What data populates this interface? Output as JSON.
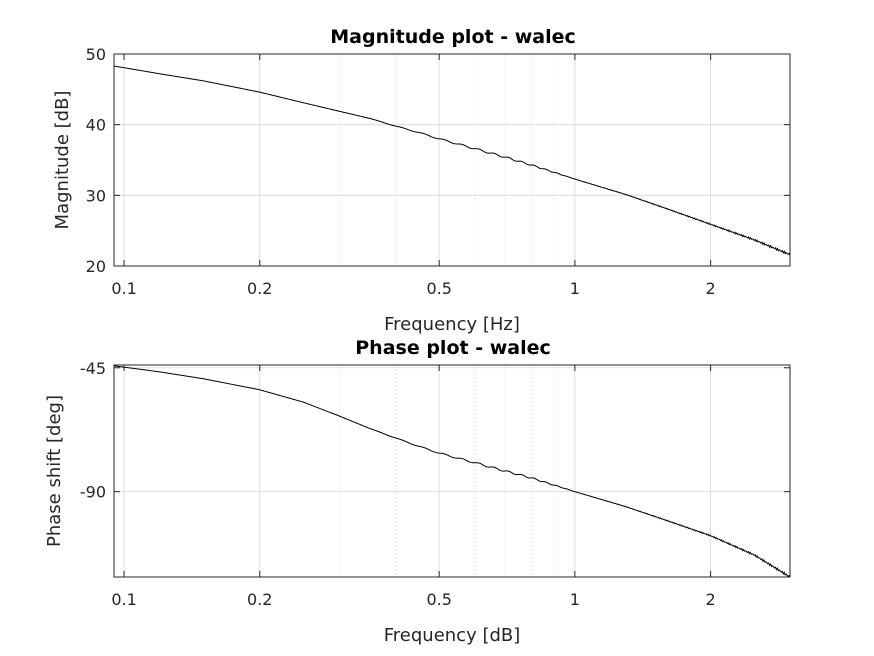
{
  "chart_data": [
    {
      "type": "line",
      "title": "Magnitude plot - walec",
      "xlabel": "Frequency [Hz]",
      "ylabel": "Magnitude [dB]",
      "xscale": "log",
      "xlim": [
        0.095,
        3.0
      ],
      "ylim": [
        20,
        50
      ],
      "xticks": [
        0.1,
        0.2,
        0.5,
        1,
        2
      ],
      "xticklabels": [
        "0.1",
        "0.2",
        "0.5",
        "1",
        "2"
      ],
      "yticks": [
        20,
        30,
        40,
        50
      ],
      "yticklabels": [
        "20",
        "30",
        "40",
        "50"
      ],
      "grid": true,
      "series": [
        {
          "color": "#000000",
          "x": [
            0.095,
            0.12,
            0.15,
            0.2,
            0.25,
            0.3,
            0.35,
            0.4,
            0.45,
            0.5,
            0.6,
            0.7,
            0.8,
            1.0,
            1.3,
            1.6,
            2.0,
            2.5,
            3.0
          ],
          "y": [
            48.3,
            47.2,
            46.2,
            44.6,
            43.1,
            41.9,
            40.9,
            39.8,
            38.9,
            38.0,
            36.6,
            35.4,
            34.3,
            32.3,
            30.1,
            28.1,
            25.9,
            23.7,
            21.6
          ]
        }
      ]
    },
    {
      "type": "line",
      "title": "Phase plot - walec",
      "xlabel": "Frequency [dB]",
      "ylabel": "Phase shift [deg]",
      "xscale": "log",
      "xlim": [
        0.095,
        3.0
      ],
      "ylim": [
        -121,
        -44
      ],
      "xticks": [
        0.1,
        0.2,
        0.5,
        1,
        2
      ],
      "xticklabels": [
        "0.1",
        "0.2",
        "0.5",
        "1",
        "2"
      ],
      "yticks": [
        -45,
        -90
      ],
      "yticklabels": [
        "-45",
        "-90"
      ],
      "grid": true,
      "series": [
        {
          "color": "#000000",
          "x": [
            0.095,
            0.12,
            0.15,
            0.2,
            0.25,
            0.3,
            0.35,
            0.4,
            0.45,
            0.5,
            0.6,
            0.7,
            0.8,
            1.0,
            1.3,
            1.6,
            2.0,
            2.5,
            3.0
          ],
          "y": [
            -44.3,
            -46.5,
            -49.0,
            -53.0,
            -57.5,
            -62.5,
            -67.0,
            -70.5,
            -73.5,
            -76.0,
            -79.5,
            -82.5,
            -85.0,
            -90.0,
            -95.5,
            -100.5,
            -106.0,
            -113.0,
            -121.0
          ]
        }
      ]
    }
  ]
}
